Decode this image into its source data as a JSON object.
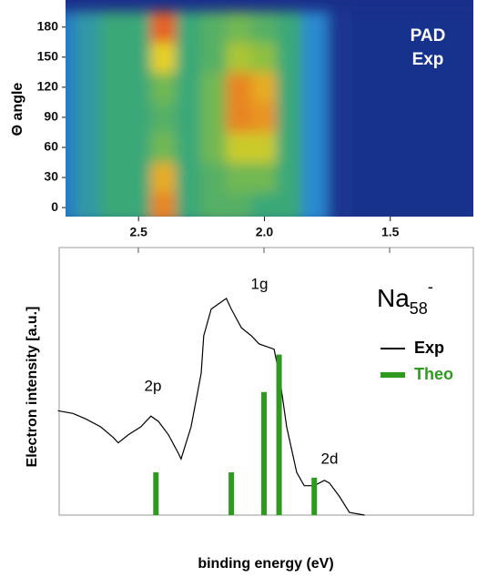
{
  "chart_data": [
    {
      "type": "heatmap",
      "annotations": [
        "PAD",
        "Exp"
      ],
      "ylabel": "Θ angle",
      "colormap": "jet",
      "x": [
        2.8,
        2.7,
        2.6,
        2.5,
        2.4,
        2.3,
        2.2,
        2.1,
        2.0,
        1.9,
        1.8,
        1.7,
        1.6,
        1.5,
        1.4,
        1.3,
        1.2
      ],
      "y": [
        0,
        30,
        60,
        90,
        120,
        150,
        180
      ],
      "z": [
        [
          0.35,
          0.45,
          0.5,
          0.5,
          0.9,
          0.5,
          0.55,
          0.55,
          0.5,
          0.5,
          0.4,
          0.12,
          0.1,
          0.1,
          0.1,
          0.1,
          0.1
        ],
        [
          0.35,
          0.45,
          0.5,
          0.5,
          0.85,
          0.5,
          0.55,
          0.6,
          0.6,
          0.5,
          0.4,
          0.12,
          0.1,
          0.1,
          0.1,
          0.1,
          0.1
        ],
        [
          0.35,
          0.45,
          0.5,
          0.5,
          0.6,
          0.5,
          0.6,
          0.75,
          0.75,
          0.5,
          0.4,
          0.12,
          0.1,
          0.1,
          0.1,
          0.1,
          0.1
        ],
        [
          0.35,
          0.45,
          0.5,
          0.5,
          0.55,
          0.5,
          0.6,
          0.9,
          0.88,
          0.5,
          0.4,
          0.12,
          0.1,
          0.1,
          0.1,
          0.1,
          0.1
        ],
        [
          0.35,
          0.45,
          0.5,
          0.5,
          0.6,
          0.5,
          0.6,
          0.9,
          0.85,
          0.5,
          0.4,
          0.12,
          0.1,
          0.1,
          0.1,
          0.1,
          0.1
        ],
        [
          0.35,
          0.45,
          0.5,
          0.5,
          0.8,
          0.5,
          0.55,
          0.7,
          0.65,
          0.5,
          0.4,
          0.12,
          0.1,
          0.1,
          0.1,
          0.1,
          0.1
        ],
        [
          0.35,
          0.45,
          0.5,
          0.5,
          0.95,
          0.5,
          0.55,
          0.6,
          0.55,
          0.5,
          0.4,
          0.12,
          0.1,
          0.1,
          0.1,
          0.1,
          0.1
        ]
      ],
      "xlim": [
        2.79,
        1.17
      ],
      "ylim": [
        -9,
        207
      ],
      "xticks": [
        2.5,
        {
          "value": 2,
          "label": "2.0"
        },
        1.5
      ],
      "yticks": [
        0,
        30,
        60,
        90,
        120,
        150,
        180
      ]
    },
    {
      "type": "line",
      "xlabel": "binding energy (eV)",
      "ylabel": "Electron intensity [a.u.]",
      "legend_title": {
        "base": "Na",
        "sub": "58",
        "sup": "-"
      },
      "annotations": [
        "2p",
        "1g",
        "2d"
      ],
      "xlim": [
        2.815,
        1.167
      ],
      "ylim": [
        0,
        1
      ],
      "xticks": [
        2.5,
        2,
        1.5
      ],
      "series": [
        {
          "name": "Exp",
          "type": "line",
          "color": "#000000",
          "x": [
            2.82,
            2.76,
            2.71,
            2.65,
            2.6,
            2.58,
            2.54,
            2.49,
            2.45,
            2.42,
            2.38,
            2.34,
            2.33,
            2.29,
            2.25,
            2.24,
            2.21,
            2.18,
            2.15,
            2.13,
            2.09,
            2.05,
            2.02,
            1.99,
            1.96,
            1.94,
            1.91,
            1.87,
            1.84,
            1.8,
            1.76,
            1.74,
            1.7,
            1.66,
            1.6
          ],
          "values": [
            0.39,
            0.38,
            0.36,
            0.33,
            0.29,
            0.27,
            0.3,
            0.33,
            0.37,
            0.35,
            0.3,
            0.23,
            0.21,
            0.33,
            0.53,
            0.67,
            0.77,
            0.79,
            0.81,
            0.77,
            0.7,
            0.67,
            0.64,
            0.63,
            0.62,
            0.53,
            0.33,
            0.16,
            0.11,
            0.11,
            0.13,
            0.12,
            0.07,
            0.01,
            0
          ]
        },
        {
          "name": "Theo",
          "type": "bar",
          "color": "#2e9a1e",
          "x": [
            2.43,
            2.13,
            2.0,
            1.94,
            1.8
          ],
          "values": [
            0.16,
            0.16,
            0.46,
            0.6,
            0.14
          ]
        }
      ]
    }
  ]
}
